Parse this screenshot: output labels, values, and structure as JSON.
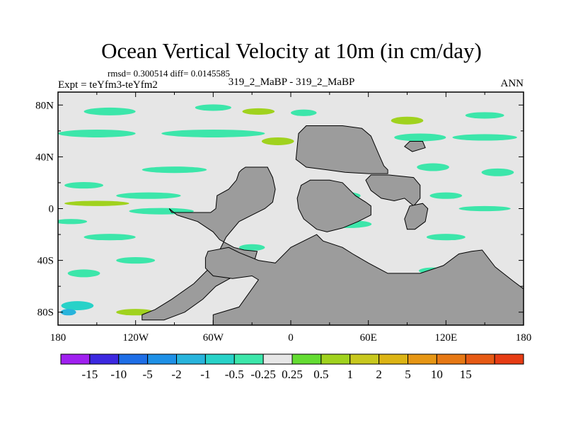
{
  "chart_data": {
    "type": "heatmap",
    "title": "Ocean Vertical Velocity at 10m (in cm/day)",
    "stats": "rmsd= 0.300514 diff= 0.0145585",
    "left_label": "Expt = teYfm3-teYfm2",
    "center_label": "319_2_MaBP - 319_2_MaBP",
    "right_label": "ANN",
    "x_axis": {
      "range": [
        -180,
        180
      ],
      "ticks": [
        -180,
        -120,
        -60,
        0,
        60,
        120,
        180
      ],
      "tick_labels": [
        "180",
        "120W",
        "60W",
        "0",
        "60E",
        "120E",
        "180"
      ]
    },
    "y_axis": {
      "range": [
        -90,
        90
      ],
      "ticks": [
        80,
        40,
        0,
        -40,
        -80
      ],
      "tick_labels": [
        "80N",
        "40N",
        "0",
        "40S",
        "80S"
      ]
    },
    "colorbar": {
      "colors": [
        "#a020f0",
        "#3c28e0",
        "#1e6ee6",
        "#1e90e6",
        "#28b4dc",
        "#28d2c8",
        "#3ce6aa",
        "#e6e6e6",
        "#64dc32",
        "#a0d21e",
        "#c8c81e",
        "#dcb414",
        "#e69614",
        "#e67814",
        "#e65a14",
        "#e63c14"
      ],
      "boundary_labels": [
        "-15",
        "-10",
        "-5",
        "-2",
        "-1",
        "-0.5",
        "-0.25",
        "0.25",
        "0.5",
        "1",
        "2",
        "5",
        "10",
        "15"
      ]
    },
    "background_color": "#e6e6e6",
    "land_color": "#9c9c9c",
    "land_regions": [
      {
        "name": "americas",
        "polygon": [
          [
            -38,
            30
          ],
          [
            -35,
            32
          ],
          [
            -18,
            32
          ],
          [
            -14,
            24
          ],
          [
            -12,
            15
          ],
          [
            -14,
            5
          ],
          [
            -20,
            0
          ],
          [
            -30,
            -5
          ],
          [
            -40,
            -10
          ],
          [
            -50,
            -22
          ],
          [
            -55,
            -32
          ],
          [
            -62,
            -45
          ],
          [
            -75,
            -58
          ],
          [
            -92,
            -70
          ],
          [
            -105,
            -78
          ],
          [
            -115,
            -82
          ],
          [
            -115,
            -86
          ],
          [
            -98,
            -86
          ],
          [
            -82,
            -80
          ],
          [
            -68,
            -70
          ],
          [
            -58,
            -60
          ],
          [
            -40,
            -50
          ],
          [
            -28,
            -40
          ],
          [
            -26,
            -33
          ],
          [
            -36,
            -32
          ],
          [
            -44,
            -30
          ],
          [
            -55,
            -24
          ],
          [
            -60,
            -18
          ],
          [
            -72,
            -10
          ],
          [
            -88,
            -5
          ],
          [
            -94,
            0
          ],
          [
            -92,
            -3
          ],
          [
            -62,
            -3
          ],
          [
            -58,
            0
          ],
          [
            -57,
            10
          ],
          [
            -48,
            15
          ],
          [
            -42,
            22
          ],
          [
            -40,
            28
          ]
        ]
      },
      {
        "name": "antarctica",
        "polygon": [
          [
            -66,
            -38
          ],
          [
            -64,
            -33
          ],
          [
            -48,
            -30
          ],
          [
            -40,
            -34
          ],
          [
            -25,
            -40
          ],
          [
            -12,
            -42
          ],
          [
            0,
            -30
          ],
          [
            20,
            -20
          ],
          [
            25,
            -25
          ],
          [
            40,
            -30
          ],
          [
            48,
            -35
          ],
          [
            60,
            -42
          ],
          [
            75,
            -50
          ],
          [
            100,
            -50
          ],
          [
            118,
            -44
          ],
          [
            130,
            -35
          ],
          [
            140,
            -33
          ],
          [
            148,
            -32
          ],
          [
            158,
            -45
          ],
          [
            172,
            -56
          ],
          [
            180,
            -62
          ],
          [
            180,
            -90
          ],
          [
            -60,
            -90
          ],
          [
            -60,
            -82
          ],
          [
            -40,
            -76
          ],
          [
            -25,
            -55
          ],
          [
            -30,
            -52
          ],
          [
            -45,
            -54
          ],
          [
            -60,
            -52
          ],
          [
            -66,
            -46
          ]
        ]
      },
      {
        "name": "asia",
        "polygon": [
          [
            6,
            58
          ],
          [
            12,
            64
          ],
          [
            40,
            64
          ],
          [
            55,
            62
          ],
          [
            62,
            56
          ],
          [
            68,
            42
          ],
          [
            72,
            33
          ],
          [
            75,
            30
          ],
          [
            75,
            27
          ],
          [
            60,
            27
          ],
          [
            42,
            28
          ],
          [
            28,
            30
          ],
          [
            12,
            32
          ],
          [
            4,
            38
          ]
        ]
      },
      {
        "name": "africa",
        "polygon": [
          [
            8,
            18
          ],
          [
            15,
            22
          ],
          [
            30,
            22
          ],
          [
            40,
            20
          ],
          [
            50,
            10
          ],
          [
            58,
            5
          ],
          [
            62,
            2
          ],
          [
            62,
            -5
          ],
          [
            52,
            -10
          ],
          [
            40,
            -15
          ],
          [
            28,
            -18
          ],
          [
            20,
            -16
          ],
          [
            10,
            -8
          ],
          [
            6,
            0
          ],
          [
            5,
            8
          ]
        ]
      },
      {
        "name": "india",
        "polygon": [
          [
            58,
            22
          ],
          [
            62,
            26
          ],
          [
            76,
            26
          ],
          [
            95,
            24
          ],
          [
            100,
            18
          ],
          [
            100,
            8
          ],
          [
            95,
            2
          ],
          [
            88,
            8
          ],
          [
            80,
            6
          ],
          [
            70,
            8
          ],
          [
            62,
            14
          ]
        ]
      },
      {
        "name": "island",
        "polygon": [
          [
            88,
            -8
          ],
          [
            92,
            2
          ],
          [
            102,
            4
          ],
          [
            106,
            0
          ],
          [
            104,
            -10
          ],
          [
            96,
            -16
          ],
          [
            90,
            -16
          ]
        ]
      },
      {
        "name": "ne-block",
        "polygon": [
          [
            88,
            48
          ],
          [
            92,
            52
          ],
          [
            102,
            52
          ],
          [
            104,
            47
          ],
          [
            94,
            44
          ]
        ]
      }
    ],
    "anomaly_patches": [
      {
        "lon": -140,
        "lat": 75,
        "w": 40,
        "h": 6,
        "value": -0.5
      },
      {
        "lon": -60,
        "lat": 78,
        "w": 28,
        "h": 5,
        "value": -0.5
      },
      {
        "lon": -25,
        "lat": 75,
        "w": 25,
        "h": 5,
        "value": 0.5
      },
      {
        "lon": 10,
        "lat": 74,
        "w": 20,
        "h": 5,
        "value": -0.5
      },
      {
        "lon": 90,
        "lat": 68,
        "w": 25,
        "h": 6,
        "value": 0.5
      },
      {
        "lon": 150,
        "lat": 72,
        "w": 30,
        "h": 5,
        "value": -0.5
      },
      {
        "lon": -150,
        "lat": 58,
        "w": 60,
        "h": 6,
        "value": -0.5
      },
      {
        "lon": -60,
        "lat": 58,
        "w": 80,
        "h": 6,
        "value": -0.5
      },
      {
        "lon": -10,
        "lat": 52,
        "w": 25,
        "h": 6,
        "value": 0.5
      },
      {
        "lon": 100,
        "lat": 55,
        "w": 40,
        "h": 6,
        "value": -0.5
      },
      {
        "lon": 150,
        "lat": 55,
        "w": 50,
        "h": 5,
        "value": -0.5
      },
      {
        "lon": 110,
        "lat": 32,
        "w": 25,
        "h": 6,
        "value": -0.5
      },
      {
        "lon": 160,
        "lat": 28,
        "w": 25,
        "h": 6,
        "value": -0.5
      },
      {
        "lon": -90,
        "lat": 30,
        "w": 50,
        "h": 5,
        "value": -0.5
      },
      {
        "lon": -160,
        "lat": 18,
        "w": 30,
        "h": 5,
        "value": -0.5
      },
      {
        "lon": -110,
        "lat": 10,
        "w": 50,
        "h": 5,
        "value": -0.5
      },
      {
        "lon": -150,
        "lat": 4,
        "w": 50,
        "h": 4,
        "value": 0.5
      },
      {
        "lon": -100,
        "lat": -2,
        "w": 50,
        "h": 5,
        "value": -0.5
      },
      {
        "lon": 40,
        "lat": 10,
        "w": 28,
        "h": 6,
        "value": -0.5
      },
      {
        "lon": 45,
        "lat": -12,
        "w": 35,
        "h": 6,
        "value": -0.5
      },
      {
        "lon": 40,
        "lat": -4,
        "w": 25,
        "h": 5,
        "value": 0.5
      },
      {
        "lon": 120,
        "lat": 10,
        "w": 25,
        "h": 5,
        "value": -0.5
      },
      {
        "lon": 150,
        "lat": 0,
        "w": 40,
        "h": 4,
        "value": -0.5
      },
      {
        "lon": 120,
        "lat": -22,
        "w": 30,
        "h": 5,
        "value": -0.5
      },
      {
        "lon": -140,
        "lat": -22,
        "w": 40,
        "h": 5,
        "value": -0.5
      },
      {
        "lon": -160,
        "lat": -50,
        "w": 25,
        "h": 6,
        "value": -0.5
      },
      {
        "lon": -120,
        "lat": -40,
        "w": 30,
        "h": 5,
        "value": -0.5
      },
      {
        "lon": 20,
        "lat": -38,
        "w": 25,
        "h": 5,
        "value": -0.5
      },
      {
        "lon": 110,
        "lat": -48,
        "w": 22,
        "h": 5,
        "value": -0.5
      },
      {
        "lon": -165,
        "lat": -75,
        "w": 25,
        "h": 7,
        "value": -1
      },
      {
        "lon": -172,
        "lat": -80,
        "w": 12,
        "h": 5,
        "value": -2
      },
      {
        "lon": -120,
        "lat": -80,
        "w": 30,
        "h": 5,
        "value": 0.5
      },
      {
        "lon": -30,
        "lat": -30,
        "w": 20,
        "h": 5,
        "value": -0.5
      },
      {
        "lon": 20,
        "lat": 58,
        "w": 18,
        "h": 5,
        "value": -0.5
      },
      {
        "lon": -170,
        "lat": -10,
        "w": 25,
        "h": 4,
        "value": -0.5
      }
    ]
  }
}
